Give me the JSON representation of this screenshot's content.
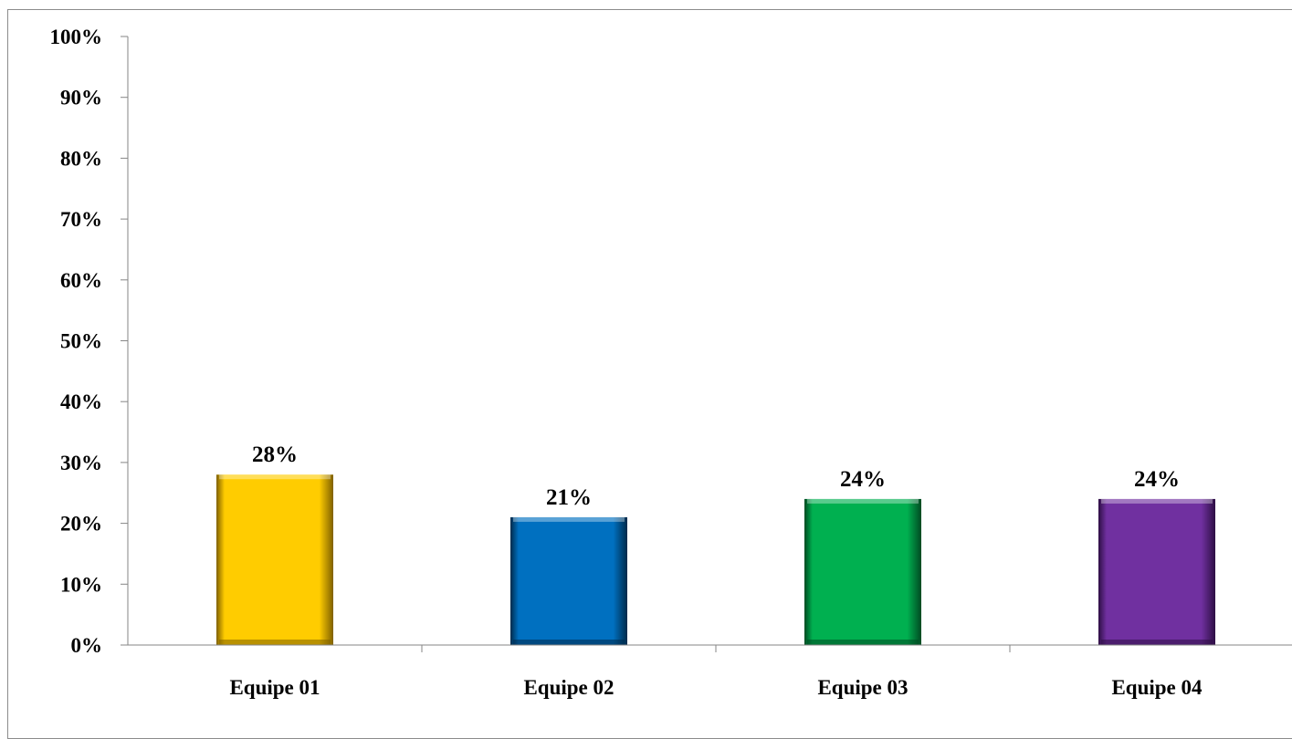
{
  "chart_data": {
    "type": "bar",
    "title": "",
    "xlabel": "",
    "ylabel": "",
    "categories": [
      "Equipe 01",
      "Equipe 02",
      "Equipe 03",
      "Equipe 04"
    ],
    "values": [
      0.28,
      0.21,
      0.24,
      0.24
    ],
    "data_labels": [
      "28%",
      "21%",
      "24%",
      "24%"
    ],
    "ylim": [
      0,
      1
    ],
    "yticks": [
      0,
      0.1,
      0.2,
      0.3,
      0.4,
      0.5,
      0.6,
      0.7,
      0.8,
      0.9,
      1.0
    ],
    "ytick_labels": [
      "0%",
      "10%",
      "20%",
      "30%",
      "40%",
      "50%",
      "60%",
      "70%",
      "80%",
      "90%",
      "100%"
    ],
    "grid": false,
    "legend": "none",
    "colors": [
      "#FFCC00",
      "#0070C0",
      "#00B050",
      "#7030A0"
    ],
    "edge_colors": [
      "#7F6000",
      "#002A4A",
      "#004A22",
      "#2E0F44"
    ]
  }
}
